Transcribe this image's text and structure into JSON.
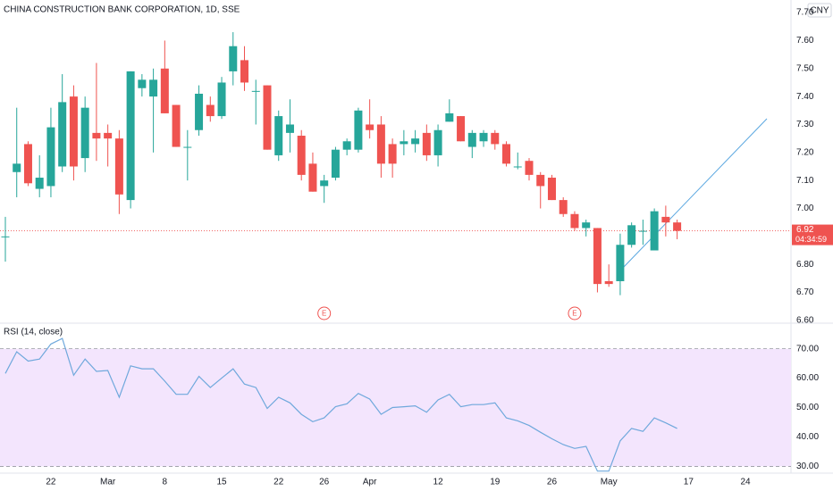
{
  "chart_data": [
    {
      "type": "candlestick",
      "title": "CHINA CONSTRUCTION BANK CORPORATION, 1D, SSE",
      "currency": "CNY",
      "up_color": "#26a69a",
      "down_color": "#ef5350",
      "open": [
        6.9,
        7.13,
        7.23,
        7.07,
        7.08,
        7.15,
        7.4,
        7.18,
        7.27,
        7.27,
        7.25,
        7.03,
        7.43,
        7.4,
        7.5,
        7.37,
        7.22,
        7.28,
        7.37,
        7.33,
        7.49,
        7.53,
        7.42,
        7.44,
        7.19,
        7.27,
        7.26,
        7.16,
        7.08,
        7.11,
        7.21,
        7.21,
        7.3,
        7.3,
        7.23,
        7.23,
        7.23,
        7.27,
        7.19,
        7.31,
        7.33,
        7.22,
        7.24,
        7.27,
        7.23,
        7.15,
        7.17,
        7.12,
        7.11,
        7.03,
        6.98,
        6.93,
        6.93,
        6.74,
        6.74,
        6.87,
        6.92,
        6.85,
        6.97,
        6.95
      ],
      "high": [
        6.97,
        7.36,
        7.24,
        7.19,
        7.36,
        7.48,
        7.44,
        7.4,
        7.52,
        7.3,
        7.28,
        7.49,
        7.48,
        7.5,
        7.6,
        7.37,
        7.28,
        7.44,
        7.4,
        7.47,
        7.63,
        7.58,
        7.46,
        7.44,
        7.35,
        7.39,
        7.28,
        7.2,
        7.12,
        7.22,
        7.25,
        7.36,
        7.39,
        7.33,
        7.25,
        7.28,
        7.28,
        7.3,
        7.3,
        7.39,
        7.33,
        7.28,
        7.28,
        7.28,
        7.24,
        7.2,
        7.18,
        7.13,
        7.12,
        7.04,
        6.99,
        6.96,
        6.93,
        6.8,
        6.91,
        6.95,
        6.96,
        7.0,
        7.01,
        6.96
      ],
      "low": [
        6.81,
        7.04,
        7.08,
        7.04,
        7.04,
        7.13,
        7.1,
        7.13,
        7.17,
        7.15,
        6.98,
        7.0,
        7.4,
        7.2,
        7.34,
        7.22,
        7.1,
        7.26,
        7.31,
        7.32,
        7.44,
        7.42,
        7.3,
        7.21,
        7.17,
        7.2,
        7.1,
        7.06,
        7.02,
        7.1,
        7.19,
        7.2,
        7.25,
        7.11,
        7.11,
        7.19,
        7.2,
        7.17,
        7.15,
        7.31,
        7.24,
        7.18,
        7.22,
        7.21,
        7.15,
        7.14,
        7.1,
        7.0,
        7.03,
        6.97,
        6.92,
        6.9,
        6.7,
        6.72,
        6.69,
        6.86,
        6.87,
        6.85,
        6.9,
        6.89
      ],
      "close": [
        6.9,
        7.16,
        7.09,
        7.11,
        7.29,
        7.38,
        7.15,
        7.36,
        7.25,
        7.25,
        7.05,
        7.49,
        7.46,
        7.46,
        7.34,
        7.22,
        7.22,
        7.41,
        7.33,
        7.45,
        7.58,
        7.45,
        7.42,
        7.21,
        7.33,
        7.3,
        7.12,
        7.06,
        7.1,
        7.21,
        7.24,
        7.35,
        7.28,
        7.16,
        7.16,
        7.24,
        7.25,
        7.19,
        7.28,
        7.34,
        7.24,
        7.27,
        7.27,
        7.23,
        7.16,
        7.15,
        7.12,
        7.08,
        7.03,
        6.98,
        6.93,
        6.95,
        6.73,
        6.73,
        6.87,
        6.94,
        6.92,
        6.99,
        6.95,
        6.92
      ],
      "ylim": [
        6.59,
        7.745
      ],
      "yticks": [
        {
          "value": 7.7,
          "label": "7.70"
        },
        {
          "value": 7.6,
          "label": "7.60"
        },
        {
          "value": 7.5,
          "label": "7.50"
        },
        {
          "value": 7.4,
          "label": "7.40"
        },
        {
          "value": 7.3,
          "label": "7.30"
        },
        {
          "value": 7.2,
          "label": "7.20"
        },
        {
          "value": 7.1,
          "label": "7.10"
        },
        {
          "value": 7.0,
          "label": "7.00"
        },
        {
          "value": 6.9,
          "label": "6.90"
        },
        {
          "value": 6.8,
          "label": "6.80"
        },
        {
          "value": 6.7,
          "label": "6.70"
        },
        {
          "value": 6.6,
          "label": "6.60"
        }
      ],
      "last_price": {
        "value": 6.92,
        "label": "6.92"
      },
      "countdown": "04:34:59",
      "annotations": [
        {
          "x": 28,
          "label": "E"
        },
        {
          "x": 50,
          "label": "E"
        }
      ]
    },
    {
      "type": "line",
      "title": "RSI (14, close)",
      "color": "#6fa8dc",
      "values": [
        61.6,
        69,
        65.8,
        66.5,
        71.6,
        73.5,
        61,
        66.5,
        62.3,
        62.6,
        53.5,
        64.2,
        63.2,
        63.2,
        59,
        54.5,
        54.5,
        60.6,
        56.8,
        60,
        63.2,
        58,
        56.8,
        49.7,
        53.5,
        51.6,
        47.7,
        45.2,
        46.5,
        50.3,
        51.3,
        54.8,
        52.9,
        47.7,
        50,
        50.3,
        50.6,
        48.4,
        52.6,
        54.5,
        50.3,
        51,
        51,
        51.6,
        46.5,
        45.5,
        43.9,
        41.6,
        39.4,
        37.4,
        36.1,
        36.8,
        28.4,
        28.4,
        38.7,
        42.9,
        41.9,
        46.5,
        44.8,
        42.9
      ],
      "band": [
        30,
        70
      ],
      "band_color": "#f3e5fd",
      "ylim": [
        27.7,
        78.7
      ],
      "yticks": [
        {
          "value": 70,
          "label": "70.00"
        },
        {
          "value": 60,
          "label": "60.00"
        },
        {
          "value": 50,
          "label": "50.00"
        },
        {
          "value": 40,
          "label": "40.00"
        },
        {
          "value": 30,
          "label": "30.00"
        }
      ],
      "xlim": [
        -0.47,
        69
      ],
      "xticks": [
        {
          "value": 4,
          "label": "22"
        },
        {
          "value": 9,
          "label": "Mar"
        },
        {
          "value": 14,
          "label": "8"
        },
        {
          "value": 19,
          "label": "15"
        },
        {
          "value": 24,
          "label": "22"
        },
        {
          "value": 28,
          "label": "26"
        },
        {
          "value": 32,
          "label": "Apr"
        },
        {
          "value": 38,
          "label": "12"
        },
        {
          "value": 43,
          "label": "19"
        },
        {
          "value": 48,
          "label": "26"
        },
        {
          "value": 53,
          "label": "May"
        },
        {
          "value": 60,
          "label": "17"
        },
        {
          "value": 65,
          "label": "24"
        }
      ]
    }
  ]
}
